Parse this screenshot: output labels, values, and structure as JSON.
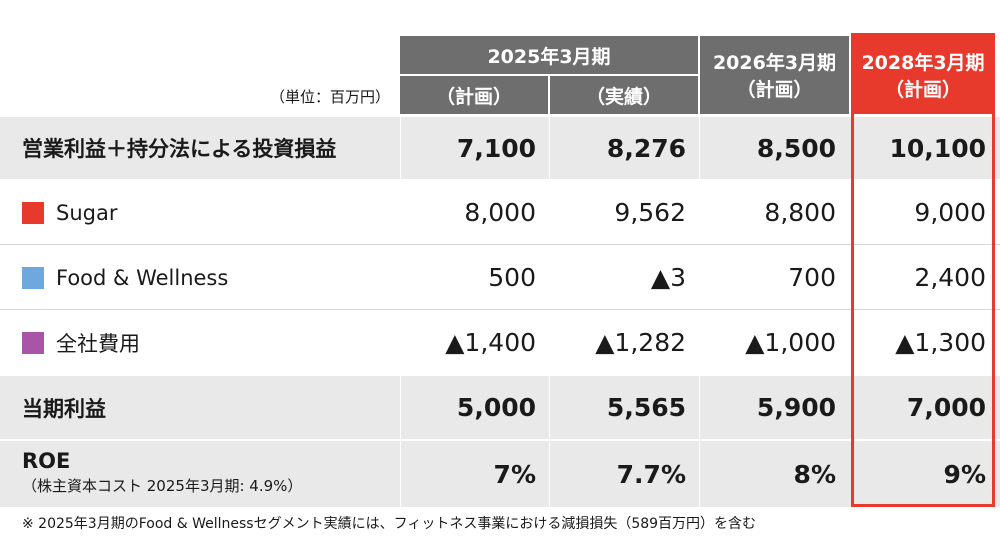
{
  "unit_label": "（単位：百万円）",
  "headers": {
    "fy2025": "2025年3月期",
    "fy2025_plan": "（計画）",
    "fy2025_actual": "（実績）",
    "fy2026": "2026年3月期",
    "fy2026_plan": "（計画）",
    "fy2028": "2028年3月期",
    "fy2028_plan": "（計画）"
  },
  "rows": [
    {
      "label": "営業利益＋持分法による投資損益",
      "values": [
        "7,100",
        "8,276",
        "8,500",
        "10,100"
      ]
    },
    {
      "label": "Sugar",
      "swatch": "#e8392d",
      "values": [
        "8,000",
        "9,562",
        "8,800",
        "9,000"
      ]
    },
    {
      "label": "Food & Wellness",
      "swatch": "#6fa8dc",
      "values": [
        "500",
        "▲3",
        "700",
        "2,400"
      ]
    },
    {
      "label": "全社費用",
      "swatch": "#a855a8",
      "values": [
        "▲1,400",
        "▲1,282",
        "▲1,000",
        "▲1,300"
      ]
    },
    {
      "label": "当期利益",
      "values": [
        "5,000",
        "5,565",
        "5,900",
        "7,000"
      ]
    },
    {
      "label": "ROE",
      "sublabel": "（株主資本コスト 2025年3月期: 4.9%）",
      "values": [
        "7%",
        "7.7%",
        "8%",
        "9%"
      ]
    }
  ],
  "footnote": "※ 2025年3月期のFood & Wellnessセグメント実績には、フィットネス事業における減損損失（589百万円）を含む",
  "colors": {
    "header_grey": "#6e6e6e",
    "highlight_red": "#e8392d",
    "row_shade": "#e9e9e9"
  }
}
